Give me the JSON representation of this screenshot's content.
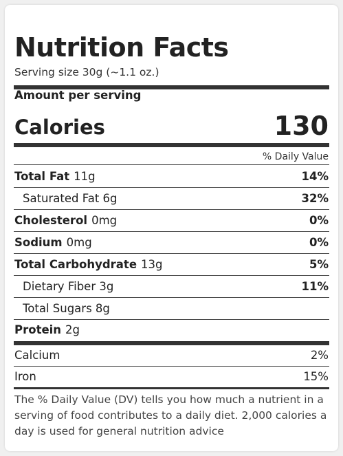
{
  "title": "Nutrition Facts",
  "serving": "Serving size 30g (~1.1 oz.)",
  "amount_per_serving": "Amount per serving",
  "calories": {
    "label": "Calories",
    "value": "130"
  },
  "dv_header": "% Daily Value",
  "nutrients": [
    {
      "label": "Total Fat",
      "amount": "11g",
      "dv": "14%"
    },
    {
      "label": "Saturated Fat 6g",
      "dv": "32%"
    },
    {
      "label": "Cholesterol",
      "amount": "0mg",
      "dv": "0%"
    },
    {
      "label": "Sodium",
      "amount": "0mg",
      "dv": "0%"
    },
    {
      "label": "Total Carbohydrate",
      "amount": "13g",
      "dv": "5%"
    },
    {
      "label": "Dietary Fiber 3g",
      "dv": "11%"
    },
    {
      "label": "Total Sugars 8g",
      "dv": ""
    },
    {
      "label": "Protein",
      "amount": "2g",
      "dv": ""
    }
  ],
  "minerals": [
    {
      "label": "Calcium",
      "dv": "2%"
    },
    {
      "label": "Iron",
      "dv": "15%"
    }
  ],
  "footnote": "The % Daily Value (DV) tells you how much a nutrient in a serving of food contributes to a daily diet. 2,000 calories a day is used for general nutrition advice"
}
